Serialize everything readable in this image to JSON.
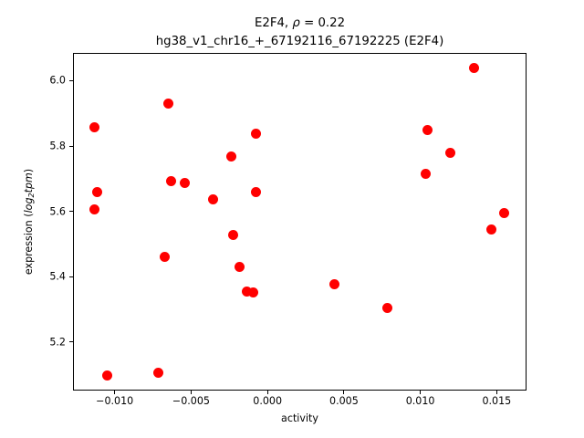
{
  "figure": {
    "background": "#ffffff",
    "title": {
      "line1_prefix": "E2F4, ",
      "line1_rho": "ρ",
      "line1_suffix": " = 0.22",
      "line2": "hg38_v1_chr16_+_67192116_67192225 (E2F4)"
    }
  },
  "chart_data": {
    "type": "scatter",
    "title": "E2F4, ρ = 0.22\nhg38_v1_chr16_+_67192116_67192225 (E2F4)",
    "xlabel": "activity",
    "ylabel": {
      "prefix": "expression (",
      "log": "log",
      "sub": "2",
      "tpm": "tpm",
      "suffix": ")"
    },
    "marker_color": "#ff0000",
    "axis_color": "#000000",
    "xlim": [
      -0.01273,
      0.01689
    ],
    "ylim": [
      5.054,
      6.086
    ],
    "xticks": [
      -0.01,
      -0.005,
      0.0,
      0.005,
      0.01,
      0.015
    ],
    "xtick_labels": [
      "−0.010",
      "−0.005",
      "0.000",
      "0.005",
      "0.010",
      "0.015"
    ],
    "yticks": [
      5.2,
      5.4,
      5.6,
      5.8,
      6.0
    ],
    "ytick_labels": [
      "5.2",
      "5.4",
      "5.6",
      "5.8",
      "6.0"
    ],
    "grid": false,
    "legend": null,
    "points": [
      {
        "x": -0.00646,
        "y": 5.93
      },
      {
        "x": -0.01134,
        "y": 5.858
      },
      {
        "x": -0.00074,
        "y": 5.839
      },
      {
        "x": -0.00238,
        "y": 5.769
      },
      {
        "x": -0.00632,
        "y": 5.693
      },
      {
        "x": -0.00542,
        "y": 5.686
      },
      {
        "x": -0.00357,
        "y": 5.637
      },
      {
        "x": -0.01117,
        "y": 5.66
      },
      {
        "x": -0.01134,
        "y": 5.605
      },
      {
        "x": -0.00074,
        "y": 5.658
      },
      {
        "x": -0.00222,
        "y": 5.528
      },
      {
        "x": -0.00674,
        "y": 5.462
      },
      {
        "x": -0.00184,
        "y": 5.43
      },
      {
        "x": -0.00138,
        "y": 5.356
      },
      {
        "x": -0.00094,
        "y": 5.352
      },
      {
        "x": -0.0105,
        "y": 5.097
      },
      {
        "x": -0.00715,
        "y": 5.105
      },
      {
        "x": 0.01349,
        "y": 6.039
      },
      {
        "x": 0.01046,
        "y": 5.849
      },
      {
        "x": 0.01196,
        "y": 5.78
      },
      {
        "x": 0.01033,
        "y": 5.716
      },
      {
        "x": 0.01548,
        "y": 5.595
      },
      {
        "x": 0.01464,
        "y": 5.544
      },
      {
        "x": 0.00437,
        "y": 5.376
      },
      {
        "x": 0.00782,
        "y": 5.305
      }
    ]
  }
}
